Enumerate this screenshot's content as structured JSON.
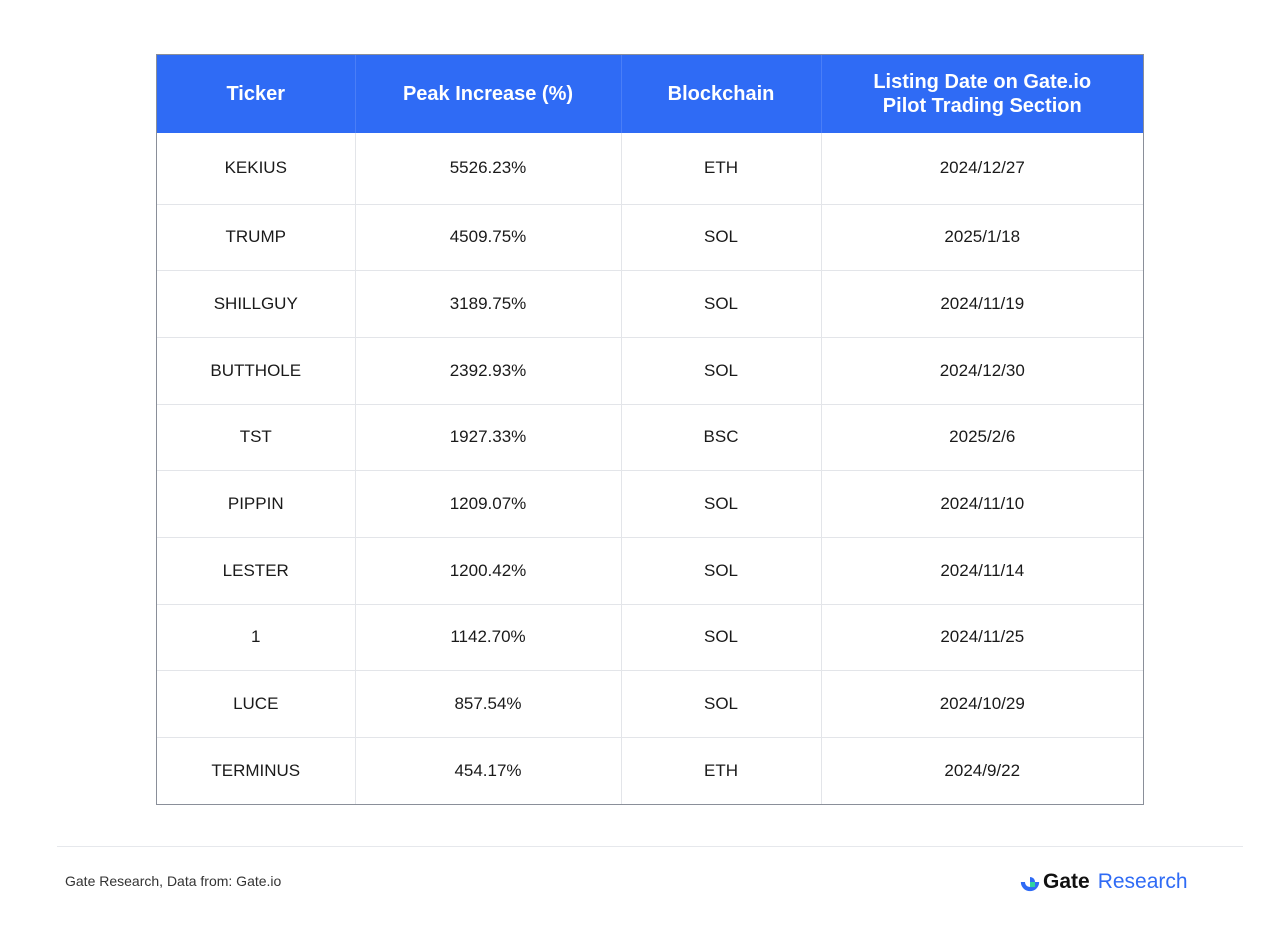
{
  "table": {
    "headers": {
      "ticker": "Ticker",
      "peak_increase": "Peak Increase (%)",
      "blockchain": "Blockchain",
      "listing_date_line1": "Listing Date on Gate.io",
      "listing_date_line2": "Pilot Trading Section"
    },
    "rows": [
      {
        "ticker": "KEKIUS",
        "peak": "5526.23%",
        "chain": "ETH",
        "date": "2024/12/27"
      },
      {
        "ticker": "TRUMP",
        "peak": "4509.75%",
        "chain": "SOL",
        "date": "2025/1/18"
      },
      {
        "ticker": "SHILLGUY",
        "peak": "3189.75%",
        "chain": "SOL",
        "date": "2024/11/19"
      },
      {
        "ticker": "BUTTHOLE",
        "peak": "2392.93%",
        "chain": "SOL",
        "date": "2024/12/30"
      },
      {
        "ticker": "TST",
        "peak": "1927.33%",
        "chain": "BSC",
        "date": "2025/2/6"
      },
      {
        "ticker": "PIPPIN",
        "peak": "1209.07%",
        "chain": "SOL",
        "date": "2024/11/10"
      },
      {
        "ticker": "LESTER",
        "peak": "1200.42%",
        "chain": "SOL",
        "date": "2024/11/14"
      },
      {
        "ticker": "1",
        "peak": "1142.70%",
        "chain": "SOL",
        "date": "2024/11/25"
      },
      {
        "ticker": "LUCE",
        "peak": "857.54%",
        "chain": "SOL",
        "date": "2024/10/29"
      },
      {
        "ticker": "TERMINUS",
        "peak": "454.17%",
        "chain": "ETH",
        "date": "2024/9/22"
      }
    ]
  },
  "footer": {
    "source": "Gate Research, Data from: Gate.io",
    "brand_name": "Gate",
    "brand_sub": "Research",
    "logo_icon": "gate-logo-icon"
  },
  "colors": {
    "header_bg": "#2f6bf5",
    "accent": "#2f6bf5"
  }
}
